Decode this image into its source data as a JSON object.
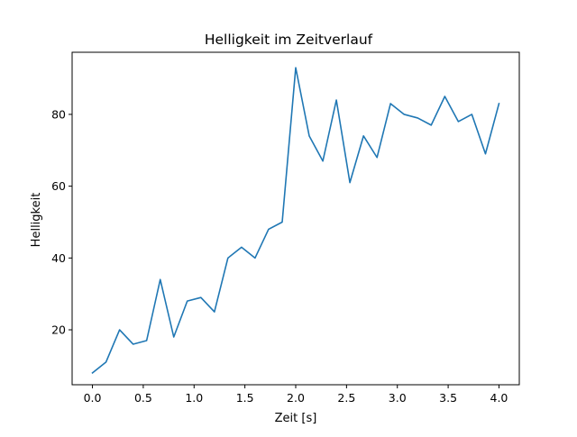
{
  "chart_data": {
    "type": "line",
    "title": "Helligkeit im Zeitverlauf",
    "xlabel": "Zeit [s]",
    "ylabel": "Helligkeit",
    "xlim": [
      -0.2,
      4.2
    ],
    "ylim": [
      4.7,
      97.3
    ],
    "x_ticks": [
      0.0,
      0.5,
      1.0,
      1.5,
      2.0,
      2.5,
      3.0,
      3.5,
      4.0
    ],
    "x_tick_labels": [
      "0.0",
      "0.5",
      "1.0",
      "1.5",
      "2.0",
      "2.5",
      "3.0",
      "3.5",
      "4.0"
    ],
    "y_ticks": [
      20,
      40,
      60,
      80
    ],
    "y_tick_labels": [
      "20",
      "40",
      "60",
      "80"
    ],
    "grid": false,
    "series": [
      {
        "color": "#1f77b4",
        "x": [
          0.0,
          0.133,
          0.267,
          0.4,
          0.533,
          0.667,
          0.8,
          0.933,
          1.067,
          1.2,
          1.333,
          1.467,
          1.6,
          1.733,
          1.867,
          2.0,
          2.133,
          2.267,
          2.4,
          2.533,
          2.667,
          2.8,
          2.933,
          3.067,
          3.2,
          3.333,
          3.467,
          3.6,
          3.733,
          3.867,
          4.0
        ],
        "y": [
          8,
          11,
          20,
          16,
          17,
          34,
          18,
          28,
          29,
          25,
          40,
          43,
          40,
          48,
          50,
          93,
          74,
          67,
          84,
          61,
          74,
          68,
          83,
          80,
          79,
          77,
          85,
          78,
          80,
          69,
          83
        ]
      }
    ]
  }
}
